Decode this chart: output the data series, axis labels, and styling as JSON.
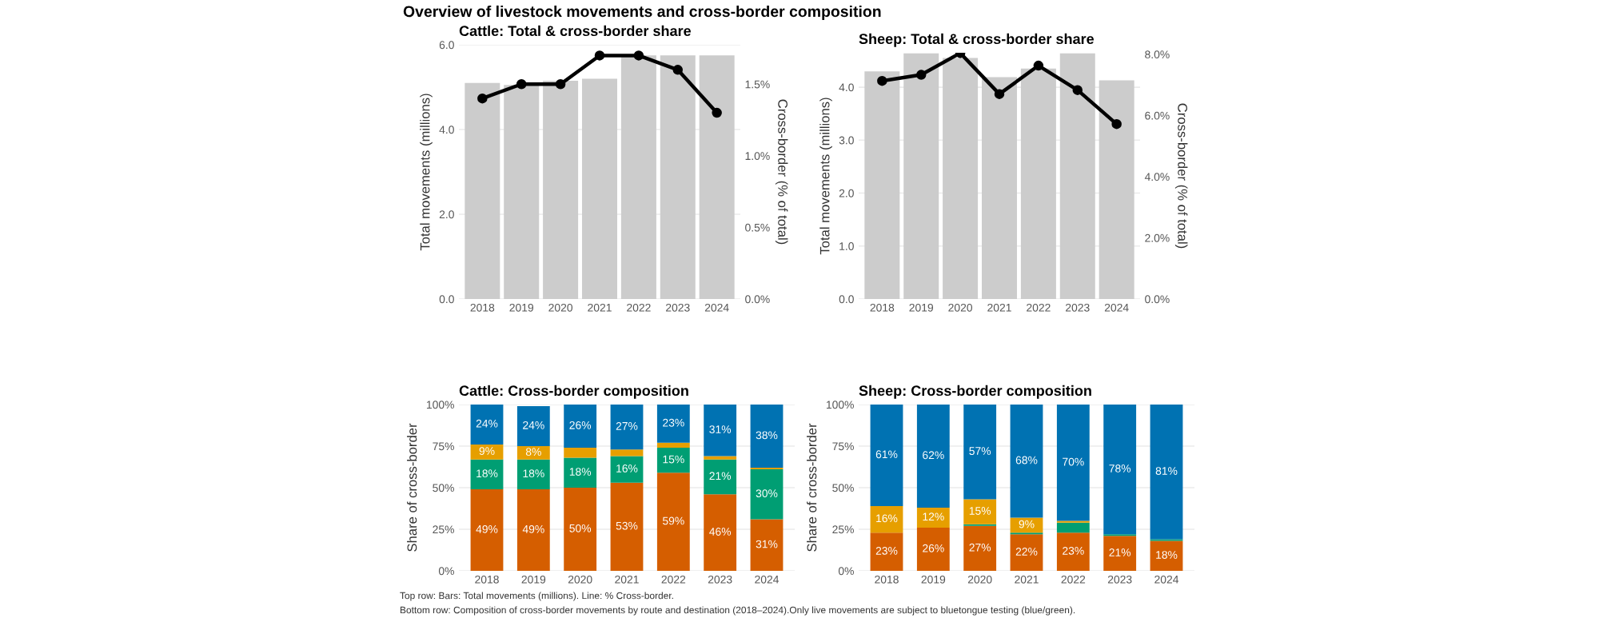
{
  "chart_data": [
    {
      "type": "bar",
      "title": "Cattle: Total & cross-border share",
      "ylabel": "Total movements (millions)",
      "y2label": "Cross-border (% of total)",
      "annotations": [
        "Overview of livestock movements and cross-border composition"
      ],
      "categories": [
        "2018",
        "2019",
        "2020",
        "2021",
        "2022",
        "2023",
        "2024"
      ],
      "series": [
        {
          "type": "bar",
          "color": "#cccccc",
          "values": [
            5.1,
            5.05,
            5.15,
            5.2,
            5.75,
            5.75,
            5.75
          ]
        },
        {
          "type": "line",
          "axis": "y2",
          "color": "#000000",
          "values": [
            1.4,
            1.5,
            1.5,
            1.7,
            1.7,
            1.6,
            1.3
          ]
        }
      ],
      "ylim": [
        0,
        6.0
      ],
      "yticks": [
        {
          "value": 0,
          "label": "0.0"
        },
        {
          "value": 2,
          "label": "2.0"
        },
        {
          "value": 4,
          "label": "4.0"
        },
        {
          "value": 6,
          "label": "6.0"
        }
      ],
      "y2lim": [
        0,
        1.775
      ],
      "y2ticks": [
        {
          "value": 0,
          "label": "0.0%"
        },
        {
          "value": 0.5,
          "label": "0.5%"
        },
        {
          "value": 1.0,
          "label": "1.0%"
        },
        {
          "value": 1.5,
          "label": "1.5%"
        }
      ],
      "grid": "y",
      "marker": "circle"
    },
    {
      "type": "bar",
      "title": "Sheep: Total & cross-border share",
      "ylabel": "Total movements (millions)",
      "y2label": "Cross-border (% of total)",
      "categories": [
        "2018",
        "2019",
        "2020",
        "2021",
        "2022",
        "2023",
        "2024"
      ],
      "series": [
        {
          "type": "bar",
          "color": "#cccccc",
          "values": [
            4.3,
            4.64,
            4.55,
            4.19,
            4.35,
            4.64,
            4.13
          ]
        },
        {
          "type": "line",
          "axis": "y2",
          "color": "#000000",
          "values": [
            7.13,
            7.33,
            8.04,
            6.7,
            7.63,
            6.83,
            5.72
          ]
        }
      ],
      "ylim": [
        0,
        4.65
      ],
      "yticks": [
        {
          "value": 0,
          "label": "0.0"
        },
        {
          "value": 1,
          "label": "1.0"
        },
        {
          "value": 2,
          "label": "2.0"
        },
        {
          "value": 3,
          "label": "3.0"
        },
        {
          "value": 4,
          "label": "4.0"
        }
      ],
      "y2lim": [
        0,
        8.05
      ],
      "y2ticks": [
        {
          "value": 0,
          "label": "0.0%"
        },
        {
          "value": 2,
          "label": "2.0%"
        },
        {
          "value": 4,
          "label": "4.0%"
        },
        {
          "value": 6,
          "label": "6.0%"
        },
        {
          "value": 8,
          "label": "8.0%"
        }
      ],
      "grid": "y",
      "marker": "circle"
    },
    {
      "type": "bar",
      "stacked": true,
      "title": "Cattle: Cross-border composition",
      "ylabel": "Share of cross-border",
      "categories": [
        "2018",
        "2019",
        "2020",
        "2021",
        "2022",
        "2023",
        "2024"
      ],
      "series": [
        {
          "color": "#d55e00",
          "values": [
            49,
            49,
            50,
            53,
            59,
            46,
            31
          ],
          "value_labels": [
            "49%",
            "49%",
            "50%",
            "53%",
            "59%",
            "46%",
            "31%"
          ]
        },
        {
          "color": "#009e73",
          "values": [
            18,
            18,
            18,
            16,
            15,
            21,
            30
          ],
          "value_labels": [
            "18%",
            "18%",
            "18%",
            "16%",
            "15%",
            "21%",
            "30%"
          ]
        },
        {
          "color": "#e69f00",
          "values": [
            9,
            8,
            6,
            4,
            3,
            2,
            1
          ],
          "value_labels": [
            "9%",
            "8%",
            null,
            null,
            null,
            null,
            null
          ]
        },
        {
          "color": "#0072b2",
          "values": [
            24,
            24,
            26,
            27,
            23,
            31,
            38
          ],
          "value_labels": [
            "24%",
            "24%",
            "26%",
            "27%",
            "23%",
            "31%",
            "38%"
          ]
        }
      ],
      "ylim": [
        0,
        100
      ],
      "yticks": [
        {
          "value": 0,
          "label": "0%"
        },
        {
          "value": 25,
          "label": "25%"
        },
        {
          "value": 50,
          "label": "50%"
        },
        {
          "value": 75,
          "label": "75%"
        },
        {
          "value": 100,
          "label": "100%"
        }
      ],
      "grid": "y"
    },
    {
      "type": "bar",
      "stacked": true,
      "title": "Sheep: Cross-border composition",
      "ylabel": "Share of cross-border",
      "annotations": [
        "Top row: Bars: Total movements (millions). Line: % Cross-border.",
        "Bottom row: Composition of cross-border movements by route and destination (2018–2024).Only live movements are subject to bluetongue testing (blue/green)."
      ],
      "categories": [
        "2018",
        "2019",
        "2020",
        "2021",
        "2022",
        "2023",
        "2024"
      ],
      "series": [
        {
          "color": "#d55e00",
          "values": [
            23,
            26,
            27,
            22,
            23,
            21,
            18
          ],
          "value_labels": [
            "23%",
            "26%",
            "27%",
            "22%",
            "23%",
            "21%",
            "18%"
          ]
        },
        {
          "color": "#009e73",
          "values": [
            0,
            0,
            1,
            1,
            6,
            1,
            1
          ],
          "value_labels": [
            null,
            null,
            null,
            null,
            null,
            null,
            null
          ]
        },
        {
          "color": "#e69f00",
          "values": [
            16,
            12,
            15,
            9,
            1,
            0,
            0
          ],
          "value_labels": [
            "16%",
            "12%",
            "15%",
            "9%",
            null,
            null,
            null
          ]
        },
        {
          "color": "#0072b2",
          "values": [
            61,
            62,
            57,
            68,
            70,
            78,
            81
          ],
          "value_labels": [
            "61%",
            "62%",
            "57%",
            "68%",
            "70%",
            "78%",
            "81%"
          ]
        }
      ],
      "ylim": [
        0,
        100
      ],
      "yticks": [
        {
          "value": 0,
          "label": "0%"
        },
        {
          "value": 25,
          "label": "25%"
        },
        {
          "value": 50,
          "label": "50%"
        },
        {
          "value": 75,
          "label": "75%"
        },
        {
          "value": 100,
          "label": "100%"
        }
      ],
      "grid": "y"
    }
  ]
}
